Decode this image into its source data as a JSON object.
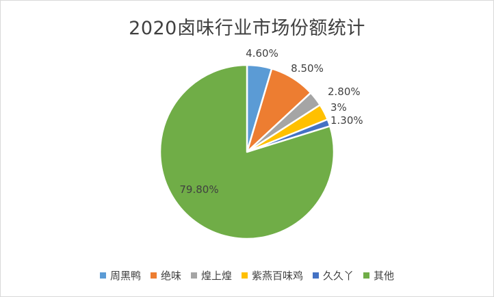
{
  "chart_data": {
    "type": "pie",
    "title": "2020卤味行业市场份额统计",
    "categories": [
      "周黑鸭",
      "绝味",
      "煌上煌",
      "紫燕百味鸡",
      "久久丫",
      "其他"
    ],
    "values": [
      4.6,
      8.5,
      2.8,
      3,
      1.3,
      79.8
    ],
    "value_labels": [
      "4.60%",
      "8.50%",
      "2.80%",
      "3%",
      "1.30%",
      "79.80%"
    ],
    "colors": [
      "#5B9BD5",
      "#ED7D31",
      "#A5A5A5",
      "#FFC000",
      "#4472C4",
      "#70AD47"
    ],
    "legend_position": "bottom",
    "start_angle": "12 o'clock, clockwise"
  }
}
